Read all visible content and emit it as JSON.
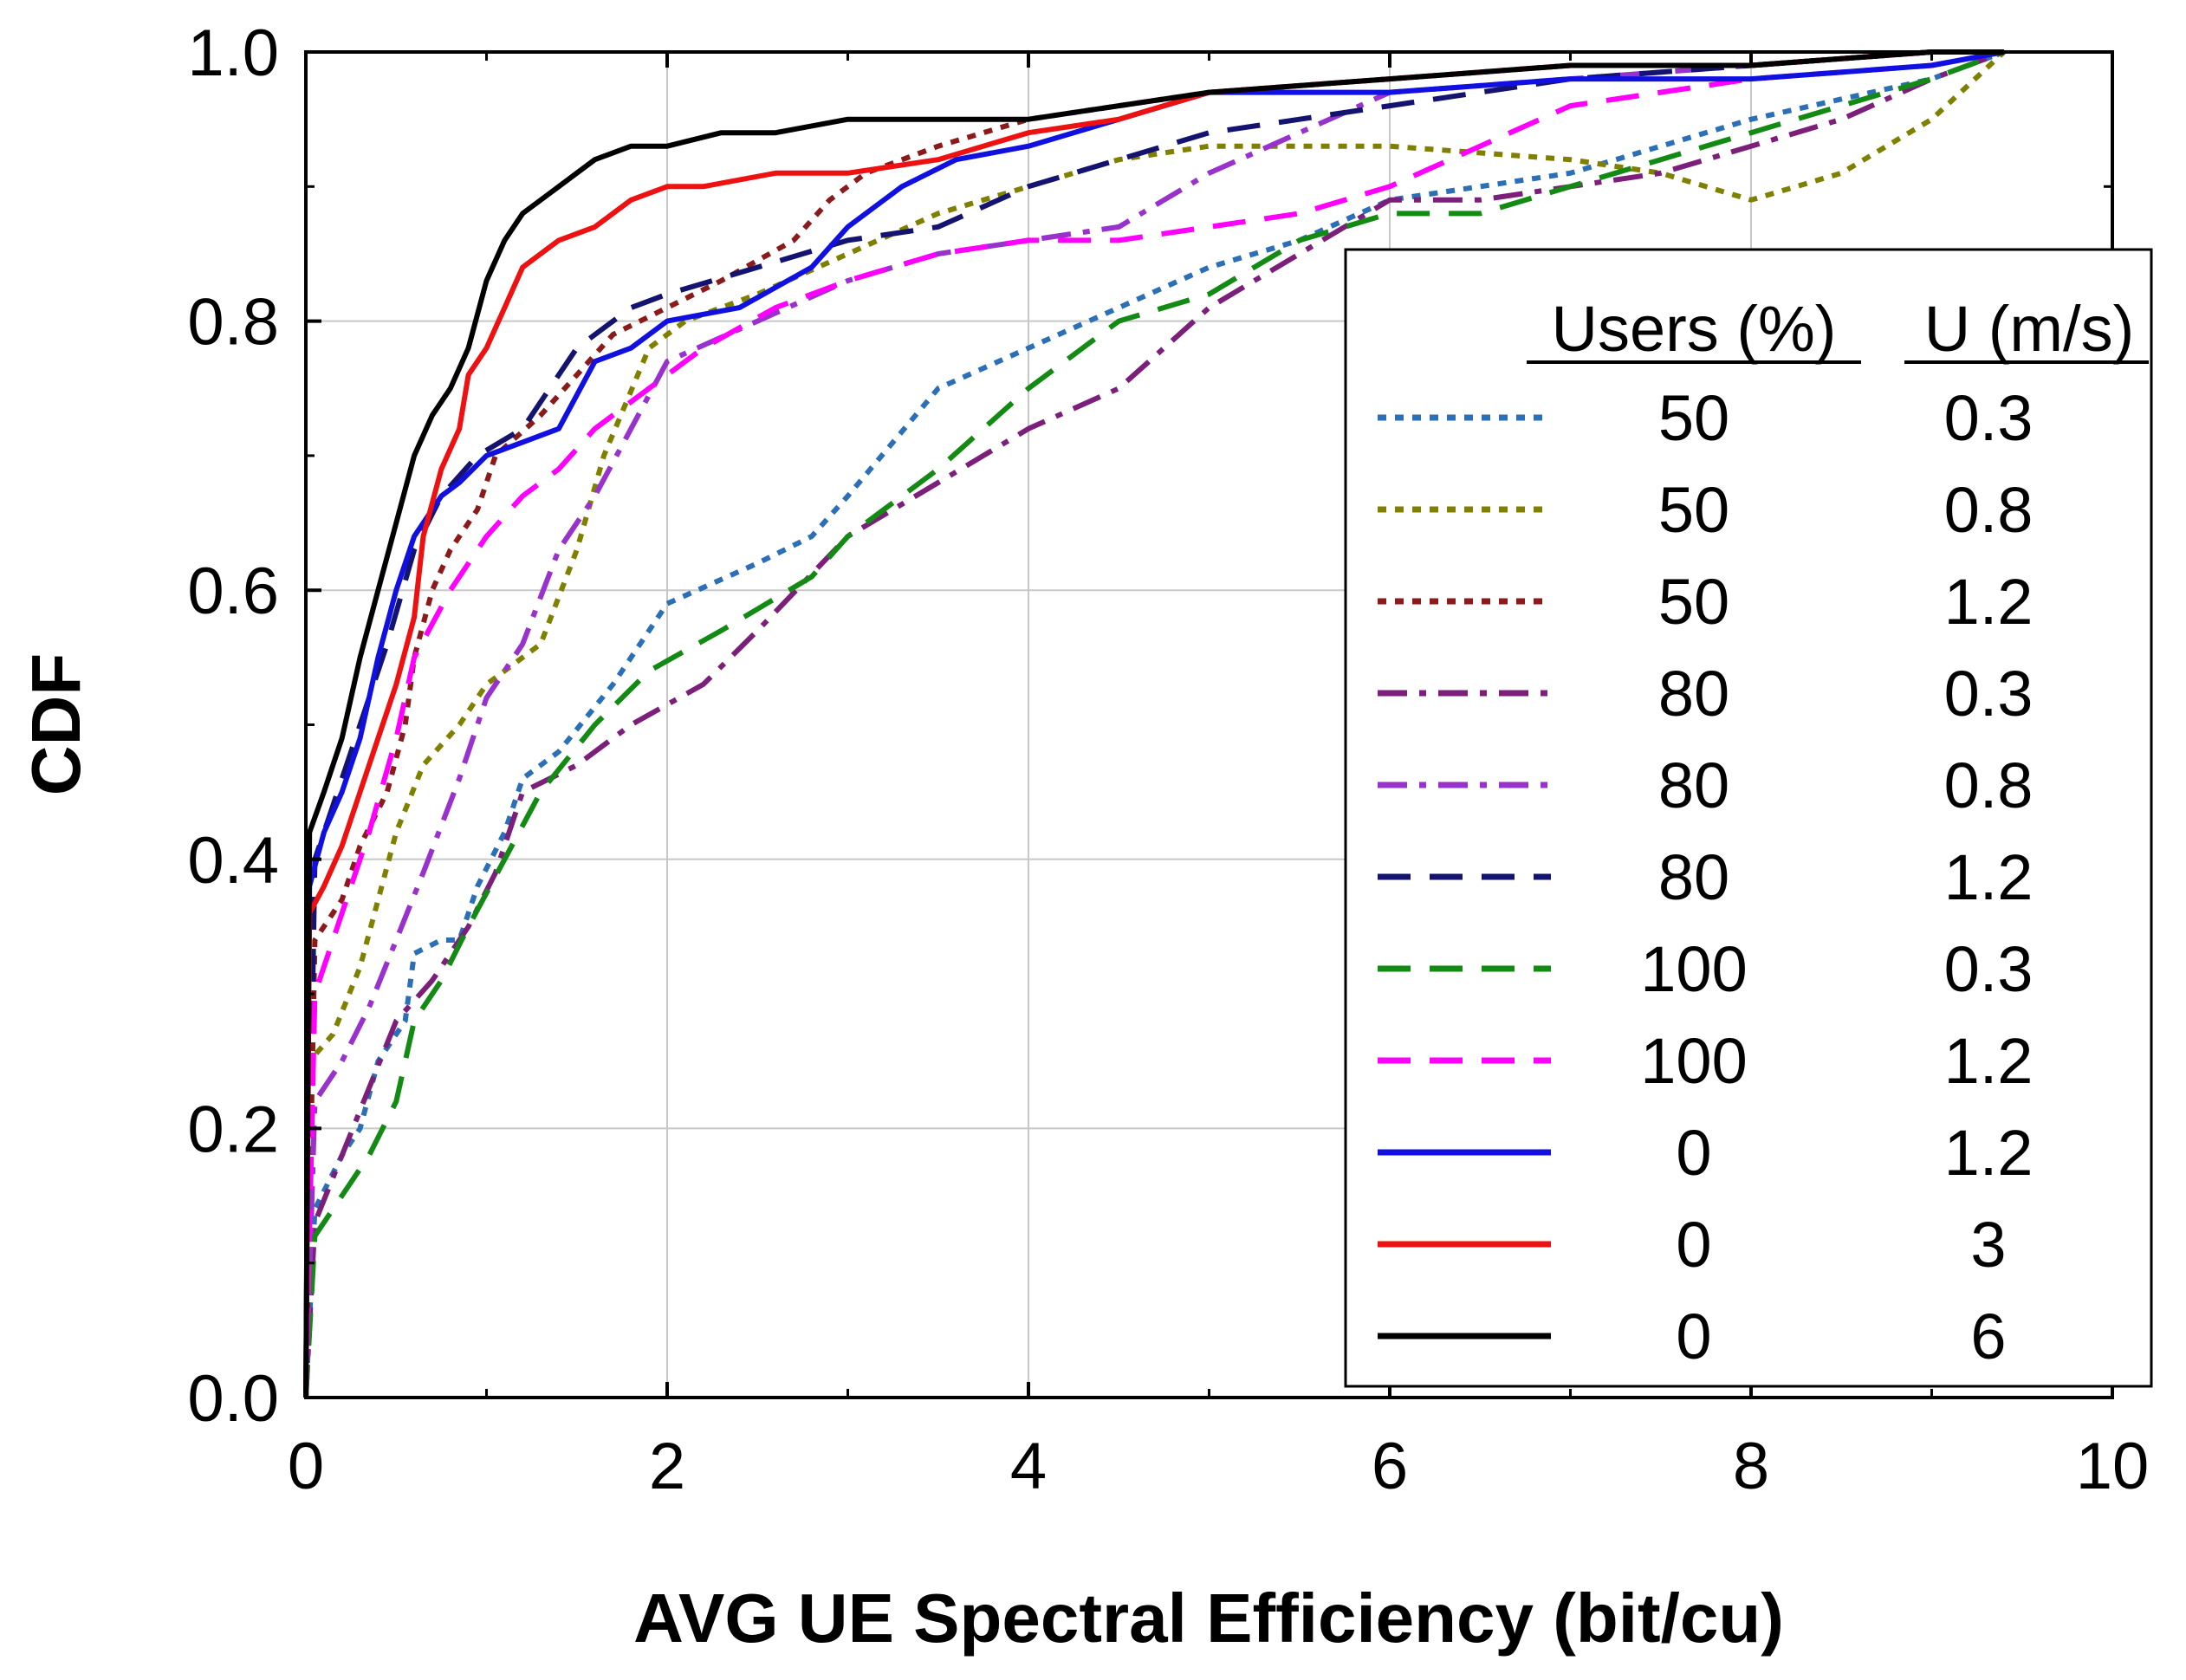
{
  "chart_data": {
    "type": "line",
    "title": "",
    "xlabel": "AVG UE Spectral Efficiency (bit/cu)",
    "ylabel": "CDF",
    "xlim": [
      0,
      10
    ],
    "ylim": [
      0,
      1
    ],
    "xticks": [
      0,
      2,
      4,
      6,
      8,
      10
    ],
    "xtick_labels": [
      "0",
      "2",
      "4",
      "6",
      "8",
      "10"
    ],
    "yticks": [
      0,
      0.2,
      0.4,
      0.6,
      0.8,
      1.0
    ],
    "ytick_labels": [
      "0.0",
      "0.2",
      "0.4",
      "0.6",
      "0.8",
      "1.0"
    ],
    "grid": true,
    "legend": {
      "placement": "right",
      "header_users": "Users (%)",
      "header_u": "U (m/s)"
    },
    "series": [
      {
        "users": "50",
        "u": "0.3",
        "color": "#2b6fb6",
        "dash": "dot",
        "x": [
          0,
          0.05,
          0.2,
          0.3,
          0.4,
          0.55,
          0.6,
          0.75,
          0.85,
          0.95,
          1.1,
          1.2,
          1.4,
          1.7,
          2.0,
          2.5,
          2.8,
          3.0,
          3.5,
          4.0,
          4.5,
          5.0,
          5.5,
          6.0,
          7.0,
          8.0,
          9.0,
          9.4
        ],
        "y": [
          0.0,
          0.14,
          0.18,
          0.2,
          0.25,
          0.28,
          0.33,
          0.34,
          0.34,
          0.38,
          0.42,
          0.46,
          0.48,
          0.53,
          0.59,
          0.62,
          0.64,
          0.67,
          0.75,
          0.78,
          0.81,
          0.84,
          0.86,
          0.89,
          0.91,
          0.95,
          0.98,
          1.0
        ]
      },
      {
        "users": "50",
        "u": "0.8",
        "color": "#808000",
        "dash": "dot",
        "x": [
          0,
          0.02,
          0.15,
          0.3,
          0.5,
          0.65,
          0.85,
          1.0,
          1.3,
          1.5,
          1.65,
          1.9,
          2.1,
          2.5,
          3.0,
          3.5,
          4.0,
          4.5,
          5.0,
          5.5,
          6.0,
          7.0,
          7.5,
          8.0,
          8.5,
          9.0,
          9.4
        ],
        "y": [
          0.0,
          0.25,
          0.27,
          0.32,
          0.42,
          0.47,
          0.5,
          0.53,
          0.56,
          0.63,
          0.7,
          0.78,
          0.8,
          0.82,
          0.85,
          0.88,
          0.9,
          0.92,
          0.93,
          0.93,
          0.93,
          0.92,
          0.91,
          0.89,
          0.91,
          0.95,
          1.0
        ]
      },
      {
        "users": "50",
        "u": "1.2",
        "color": "#8b1a1a",
        "dash": "dot",
        "x": [
          0,
          0.05,
          0.2,
          0.3,
          0.45,
          0.55,
          0.6,
          0.7,
          0.8,
          0.95,
          1.05,
          1.3,
          1.5,
          1.7,
          2.0,
          2.3,
          2.7,
          2.9,
          3.1,
          3.5,
          4.0,
          4.5,
          5.0,
          6.0,
          7.0,
          8.0,
          9.0,
          9.4
        ],
        "y": [
          0.0,
          0.34,
          0.37,
          0.41,
          0.45,
          0.5,
          0.55,
          0.6,
          0.63,
          0.66,
          0.7,
          0.73,
          0.76,
          0.79,
          0.81,
          0.83,
          0.86,
          0.89,
          0.91,
          0.93,
          0.95,
          0.96,
          0.97,
          0.98,
          0.99,
          0.99,
          1.0,
          1.0
        ]
      },
      {
        "users": "80",
        "u": "0.3",
        "color": "#7b1f7b",
        "dash": "dashdot",
        "x": [
          0,
          0.05,
          0.2,
          0.35,
          0.5,
          0.7,
          0.9,
          1.05,
          1.2,
          1.5,
          1.8,
          2.2,
          2.5,
          3.0,
          3.5,
          4.0,
          4.5,
          5.0,
          5.5,
          6.0,
          6.5,
          7.0,
          7.5,
          8.0,
          8.5,
          9.0,
          9.4
        ],
        "y": [
          0.0,
          0.13,
          0.18,
          0.23,
          0.28,
          0.31,
          0.35,
          0.39,
          0.45,
          0.47,
          0.5,
          0.53,
          0.57,
          0.64,
          0.68,
          0.72,
          0.75,
          0.81,
          0.85,
          0.89,
          0.89,
          0.9,
          0.91,
          0.93,
          0.95,
          0.98,
          1.0
        ]
      },
      {
        "users": "80",
        "u": "0.8",
        "color": "#9932cc",
        "dash": "dashdot",
        "x": [
          0,
          0.05,
          0.2,
          0.35,
          0.5,
          0.65,
          0.85,
          1.0,
          1.2,
          1.4,
          1.6,
          1.8,
          2.0,
          2.5,
          3.0,
          3.5,
          4.0,
          4.5,
          5.0,
          5.5,
          6.0,
          7.0,
          8.0,
          9.0,
          9.4
        ],
        "y": [
          0.0,
          0.22,
          0.25,
          0.29,
          0.34,
          0.39,
          0.46,
          0.52,
          0.56,
          0.63,
          0.67,
          0.72,
          0.77,
          0.8,
          0.83,
          0.85,
          0.86,
          0.87,
          0.91,
          0.94,
          0.97,
          0.98,
          0.99,
          1.0,
          1.0
        ]
      },
      {
        "users": "80",
        "u": "1.2",
        "color": "#141470",
        "dash": "dash",
        "x": [
          0,
          0.05,
          0.15,
          0.3,
          0.45,
          0.6,
          0.75,
          0.95,
          1.2,
          1.5,
          1.8,
          2.0,
          2.5,
          3.0,
          3.5,
          4.0,
          4.5,
          5.0,
          5.5,
          6.0,
          7.0,
          8.0,
          9.0,
          9.4
        ],
        "y": [
          0.0,
          0.4,
          0.44,
          0.5,
          0.56,
          0.63,
          0.67,
          0.7,
          0.72,
          0.78,
          0.81,
          0.82,
          0.84,
          0.86,
          0.87,
          0.9,
          0.92,
          0.94,
          0.95,
          0.96,
          0.98,
          0.99,
          1.0,
          1.0
        ]
      },
      {
        "users": "100",
        "u": "0.3",
        "color": "#138a13",
        "dash": "dash",
        "x": [
          0,
          0.05,
          0.2,
          0.35,
          0.5,
          0.6,
          0.75,
          0.9,
          1.1,
          1.3,
          1.6,
          1.9,
          2.3,
          2.8,
          3.0,
          3.5,
          4.0,
          4.5,
          5.0,
          5.5,
          6.0,
          6.5,
          7.0,
          7.5,
          8.0,
          8.5,
          9.0,
          9.4
        ],
        "y": [
          0.0,
          0.12,
          0.15,
          0.18,
          0.22,
          0.28,
          0.31,
          0.35,
          0.4,
          0.45,
          0.5,
          0.54,
          0.57,
          0.61,
          0.64,
          0.69,
          0.75,
          0.8,
          0.82,
          0.86,
          0.88,
          0.88,
          0.9,
          0.92,
          0.94,
          0.96,
          0.98,
          1.0
        ]
      },
      {
        "users": "100",
        "u": "1.2",
        "color": "#ff00ff",
        "dash": "dash",
        "x": [
          0,
          0.05,
          0.2,
          0.35,
          0.5,
          0.6,
          0.8,
          1.0,
          1.2,
          1.4,
          1.6,
          1.9,
          2.2,
          2.6,
          3.0,
          3.5,
          4.0,
          4.5,
          5.0,
          5.5,
          6.0,
          7.0,
          8.0,
          9.0,
          9.4
        ],
        "y": [
          0.0,
          0.3,
          0.36,
          0.42,
          0.49,
          0.55,
          0.6,
          0.64,
          0.67,
          0.69,
          0.72,
          0.75,
          0.78,
          0.81,
          0.83,
          0.85,
          0.86,
          0.86,
          0.87,
          0.88,
          0.9,
          0.96,
          0.98,
          0.99,
          1.0
        ]
      },
      {
        "users": "0",
        "u": "1.2",
        "color": "#1010e0",
        "dash": "solid",
        "x": [
          0,
          0.02,
          0.1,
          0.2,
          0.3,
          0.4,
          0.5,
          0.6,
          0.75,
          0.85,
          1.0,
          1.2,
          1.4,
          1.6,
          1.8,
          2.0,
          2.4,
          2.8,
          3.0,
          3.3,
          3.6,
          4.0,
          4.5,
          5.0,
          5.5,
          6.0,
          7.0,
          8.0,
          9.0,
          9.4
        ],
        "y": [
          0.0,
          0.38,
          0.42,
          0.45,
          0.49,
          0.55,
          0.6,
          0.64,
          0.67,
          0.68,
          0.7,
          0.71,
          0.72,
          0.77,
          0.78,
          0.8,
          0.81,
          0.84,
          0.87,
          0.9,
          0.92,
          0.93,
          0.95,
          0.97,
          0.97,
          0.97,
          0.98,
          0.98,
          0.99,
          1.0
        ]
      },
      {
        "users": "0",
        "u": "3",
        "color": "#ee1111",
        "dash": "solid",
        "x": [
          0,
          0.02,
          0.1,
          0.2,
          0.3,
          0.4,
          0.5,
          0.6,
          0.65,
          0.75,
          0.85,
          0.9,
          1.0,
          1.1,
          1.2,
          1.4,
          1.6,
          1.8,
          2.0,
          2.2,
          2.6,
          3.0,
          3.5,
          4.0,
          4.5,
          5.0,
          6.0,
          7.0,
          8.0,
          9.0,
          9.4
        ],
        "y": [
          0.0,
          0.36,
          0.38,
          0.41,
          0.45,
          0.49,
          0.53,
          0.58,
          0.64,
          0.69,
          0.72,
          0.76,
          0.78,
          0.81,
          0.84,
          0.86,
          0.87,
          0.89,
          0.9,
          0.9,
          0.91,
          0.91,
          0.92,
          0.94,
          0.95,
          0.97,
          0.98,
          0.99,
          0.99,
          1.0,
          1.0
        ]
      },
      {
        "users": "0",
        "u": "6",
        "color": "#000000",
        "dash": "solid",
        "x": [
          0,
          0.02,
          0.1,
          0.2,
          0.3,
          0.4,
          0.5,
          0.6,
          0.7,
          0.8,
          0.9,
          1.0,
          1.1,
          1.2,
          1.4,
          1.6,
          1.8,
          2.0,
          2.3,
          2.6,
          3.0,
          3.5,
          4.0,
          4.5,
          5.0,
          6.0,
          7.0,
          8.0,
          9.0,
          9.4
        ],
        "y": [
          0.0,
          0.42,
          0.45,
          0.49,
          0.55,
          0.6,
          0.65,
          0.7,
          0.73,
          0.75,
          0.78,
          0.83,
          0.86,
          0.88,
          0.9,
          0.92,
          0.93,
          0.93,
          0.94,
          0.94,
          0.95,
          0.95,
          0.95,
          0.96,
          0.97,
          0.98,
          0.99,
          0.99,
          1.0,
          1.0
        ]
      }
    ]
  }
}
